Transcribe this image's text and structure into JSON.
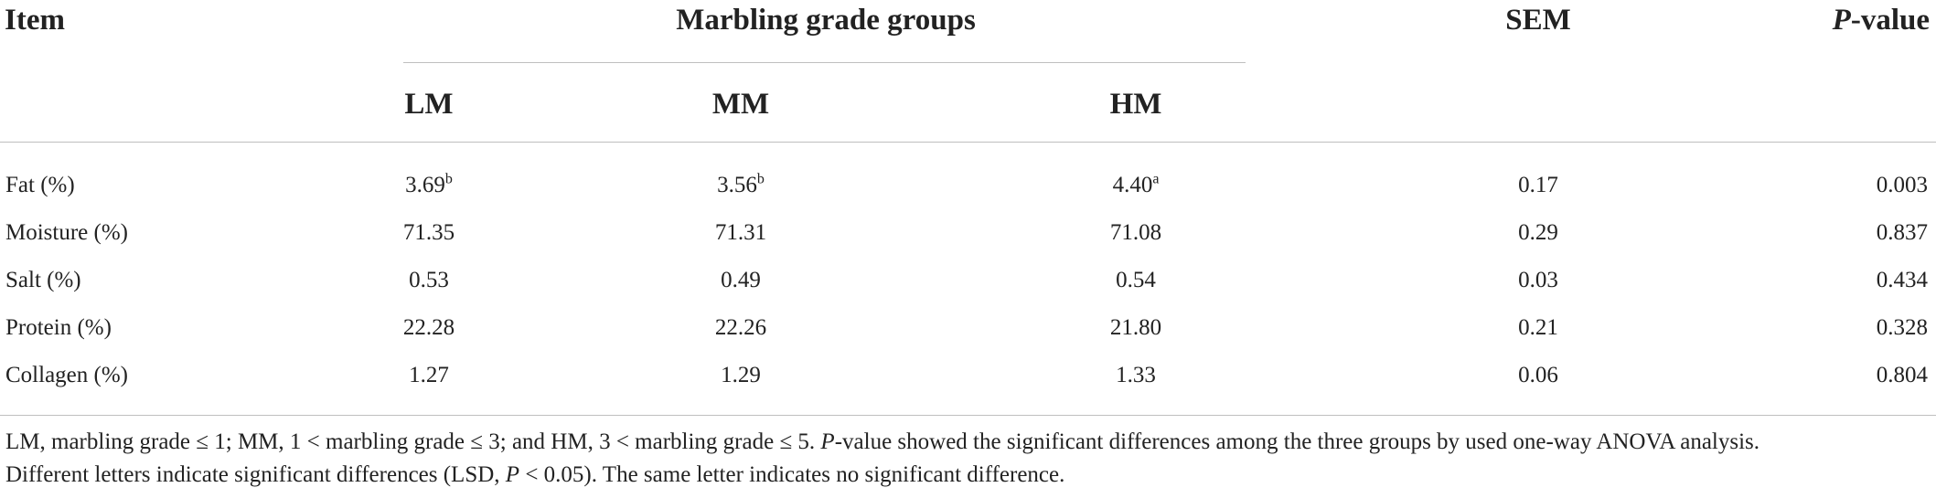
{
  "header": {
    "item": "Item",
    "group_title": "Marbling grade groups",
    "sem": "SEM",
    "p_italic": "P",
    "p_rest": "-value",
    "groups": [
      "LM",
      "MM",
      "HM"
    ]
  },
  "rows": [
    {
      "item": "Fat (%)",
      "lm": "3.69",
      "lm_sup": "b",
      "mm": "3.56",
      "mm_sup": "b",
      "hm": "4.40",
      "hm_sup": "a",
      "sem": "0.17",
      "p": "0.003"
    },
    {
      "item": "Moisture (%)",
      "lm": "71.35",
      "lm_sup": "",
      "mm": "71.31",
      "mm_sup": "",
      "hm": "71.08",
      "hm_sup": "",
      "sem": "0.29",
      "p": "0.837"
    },
    {
      "item": "Salt (%)",
      "lm": "0.53",
      "lm_sup": "",
      "mm": "0.49",
      "mm_sup": "",
      "hm": "0.54",
      "hm_sup": "",
      "sem": "0.03",
      "p": "0.434"
    },
    {
      "item": "Protein (%)",
      "lm": "22.28",
      "lm_sup": "",
      "mm": "22.26",
      "mm_sup": "",
      "hm": "21.80",
      "hm_sup": "",
      "sem": "0.21",
      "p": "0.328"
    },
    {
      "item": "Collagen (%)",
      "lm": "1.27",
      "lm_sup": "",
      "mm": "1.29",
      "mm_sup": "",
      "hm": "1.33",
      "hm_sup": "",
      "sem": "0.06",
      "p": "0.804"
    }
  ],
  "footnote": {
    "line1_a": "LM, marbling grade ≤ 1; MM, 1 < marbling grade ≤ 3; and HM, 3 < marbling grade ≤ 5. ",
    "line1_p": "P",
    "line1_b": "-value showed the significant differences among the three groups by used one-way ANOVA analysis.",
    "line2_a": "Different letters indicate significant differences (LSD, ",
    "line2_p": "P",
    "line2_b": " < 0.05). The same letter indicates no significant difference."
  }
}
